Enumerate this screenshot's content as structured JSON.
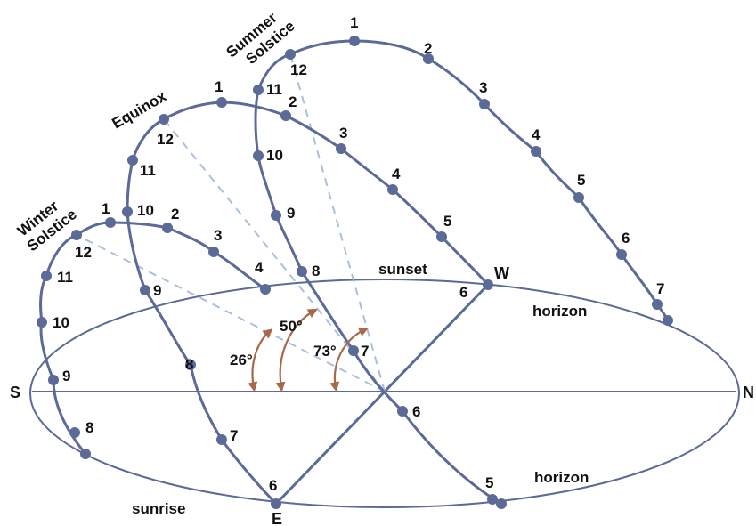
{
  "directions": {
    "south": "S",
    "north": "N",
    "east": "E",
    "west": "W"
  },
  "labels": {
    "sunset": "sunset",
    "sunrise": "sunrise",
    "horizon_upper": "horizon",
    "horizon_lower": "horizon"
  },
  "paths": {
    "winter": {
      "name_line1": "Winter",
      "name_line2": "Solstice",
      "hours": [
        "8",
        "9",
        "10",
        "11",
        "12",
        "1",
        "2",
        "3",
        "4"
      ]
    },
    "equinox": {
      "name": "Equinox",
      "hours": [
        "6",
        "7",
        "8",
        "9",
        "10",
        "11",
        "12",
        "1",
        "2",
        "3",
        "4",
        "5",
        "6"
      ]
    },
    "summer": {
      "name_line1": "Summer",
      "name_line2": "Solstice",
      "hours": [
        "5",
        "6",
        "7",
        "8",
        "9",
        "10",
        "11",
        "12",
        "1",
        "2",
        "3",
        "4",
        "5",
        "6",
        "7"
      ]
    }
  },
  "angles": {
    "winter": "26°",
    "equinox": "50°",
    "summer": "73°"
  },
  "colors": {
    "path": "#5b6a96",
    "ray": "#a9c0dc",
    "angle_arrow": "#a8684a"
  }
}
